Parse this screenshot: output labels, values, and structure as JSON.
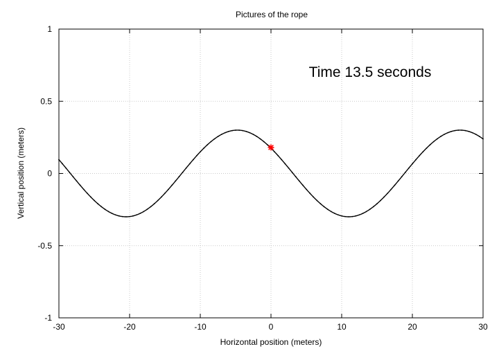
{
  "chart_data": {
    "type": "line",
    "title": "Pictures of the rope",
    "xlabel": "Horizontal position (meters)",
    "ylabel": "Vertical position (meters)",
    "xlim": [
      -30,
      30
    ],
    "ylim": [
      -1,
      1
    ],
    "xticks": [
      -30,
      -20,
      -10,
      0,
      10,
      20,
      30
    ],
    "yticks": [
      -1,
      -0.5,
      0,
      0.5,
      1
    ],
    "xtick_labels": [
      "-30",
      "-20",
      "-10",
      "0",
      "10",
      "20",
      "30"
    ],
    "ytick_labels": [
      "-1",
      "-0.5",
      "0",
      "0.5",
      "1"
    ],
    "grid": true,
    "annotation": "Time 13.5 seconds",
    "series": [
      {
        "style": "solid black line with small dot markers",
        "color": "#000000",
        "curve": {
          "form": "sine",
          "amplitude": 0.3,
          "wavelength": 31.5,
          "crest_x": -4.75
        }
      },
      {
        "style": "asterisk marker",
        "color": "#ff0000",
        "points": [
          {
            "x": 0,
            "y": 0.18
          }
        ]
      }
    ]
  }
}
